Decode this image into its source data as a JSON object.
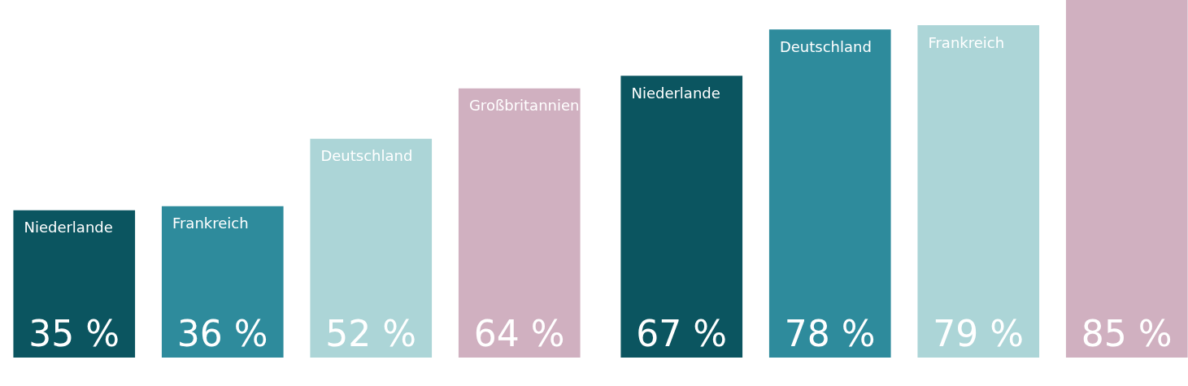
{
  "chart_data": [
    {
      "type": "bar",
      "categories": [
        "Niederlande",
        "Frankreich",
        "Deutschland",
        "Großbritannien"
      ],
      "values": [
        35,
        36,
        52,
        64
      ],
      "value_labels": [
        "35 %",
        "36 %",
        "52 %",
        "64 %"
      ],
      "colors": [
        "#0b5560",
        "#2e8b9c",
        "#acd5d7",
        "#d0b0c0"
      ]
    },
    {
      "type": "bar",
      "categories": [
        "Niederlande",
        "Deutschland",
        "Frankreich",
        null
      ],
      "values": [
        67,
        78,
        79,
        85
      ],
      "value_labels": [
        "67 %",
        "78 %",
        "79 %",
        "85 %"
      ],
      "colors": [
        "#0b5560",
        "#2e8b9c",
        "#acd5d7",
        "#d0b0c0"
      ]
    }
  ]
}
